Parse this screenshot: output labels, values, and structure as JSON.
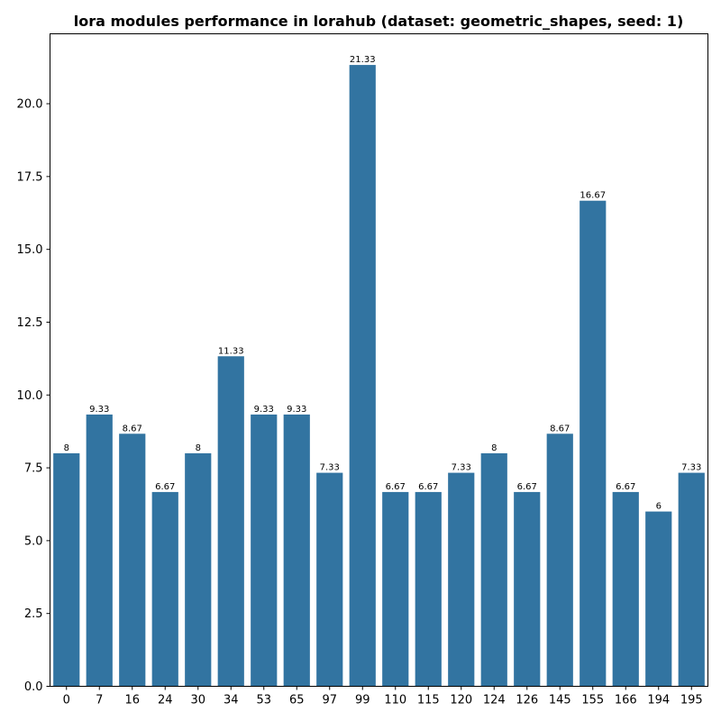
{
  "chart_data": {
    "type": "bar",
    "title": "lora modules performance in lorahub (dataset: geometric_shapes, seed: 1)",
    "xlabel": "",
    "ylabel": "",
    "categories": [
      "0",
      "7",
      "16",
      "24",
      "30",
      "34",
      "53",
      "65",
      "97",
      "99",
      "110",
      "115",
      "120",
      "124",
      "126",
      "145",
      "155",
      "166",
      "194",
      "195"
    ],
    "values": [
      8,
      9.33,
      8.67,
      6.67,
      8,
      11.33,
      9.33,
      9.33,
      7.33,
      21.33,
      6.67,
      6.67,
      7.33,
      8,
      6.67,
      8.67,
      16.67,
      6.67,
      6,
      7.33
    ],
    "data_labels": [
      "8",
      "9.33",
      "8.67",
      "6.67",
      "8",
      "11.33",
      "9.33",
      "9.33",
      "7.33",
      "21.33",
      "6.67",
      "6.67",
      "7.33",
      "8",
      "6.67",
      "8.67",
      "16.67",
      "6.67",
      "6",
      "7.33"
    ],
    "ylim": [
      0,
      22.4
    ],
    "yticks": [
      0,
      2.5,
      5,
      7.5,
      10,
      12.5,
      15,
      17.5,
      20
    ],
    "ytick_labels": [
      "0.0",
      "2.5",
      "5.0",
      "7.5",
      "10.0",
      "12.5",
      "15.0",
      "17.5",
      "20.0"
    ],
    "grid": false,
    "bar_color": "#3274a1"
  }
}
